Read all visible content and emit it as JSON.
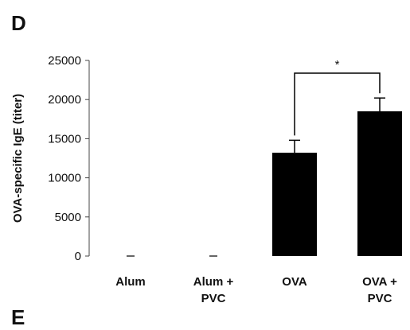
{
  "panel_label": "D",
  "next_panel_label": "E",
  "chart_data": {
    "type": "bar",
    "ylabel": "OVA-specific IgE (titer)",
    "xlabel": "",
    "categories": [
      [
        "Alum"
      ],
      [
        "Alum +",
        "PVC"
      ],
      [
        "OVA"
      ],
      [
        "OVA +",
        "PVC"
      ]
    ],
    "values": [
      0,
      0,
      13200,
      18500
    ],
    "errors": [
      0,
      0,
      1600,
      1700
    ],
    "ylim": [
      0,
      25000
    ],
    "yticks": [
      0,
      5000,
      10000,
      15000,
      20000,
      25000
    ],
    "ytick_labels": [
      "0",
      "5000",
      "10000",
      "15000",
      "20000",
      "25000"
    ],
    "bar_color": "#000000",
    "grid": false,
    "significance": {
      "between": [
        2,
        3
      ],
      "label": "*"
    }
  }
}
